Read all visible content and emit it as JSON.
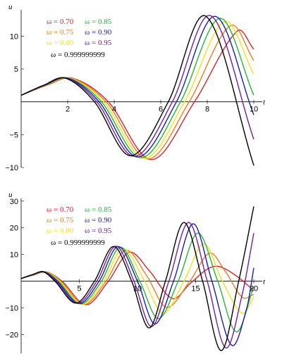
{
  "chart_data": [
    {
      "type": "line",
      "xlabel": "t",
      "ylabel": "u",
      "xlim": [
        0,
        10
      ],
      "ylim": [
        -10,
        14
      ],
      "xticks": [
        2,
        4,
        6,
        8,
        10
      ],
      "xtick_labels": [
        "2",
        "4",
        "6",
        "8",
        "10"
      ],
      "yticks": [
        -10,
        -5,
        5,
        10
      ],
      "ytick_labels": [
        "−10",
        "−5",
        "5",
        "10"
      ],
      "legend_position": "top-left",
      "series": [
        {
          "name": "ω = 0.70",
          "color": "#d8242c",
          "peak_t": 2.2,
          "valley_t": 5.6,
          "valley_u": -8.8,
          "peak2_t": 9.3,
          "peak2_u": 10.8,
          "end_u": 8.0
        },
        {
          "name": "ω = 0.75",
          "color": "#ef7d1d",
          "peak_t": 2.15,
          "valley_t": 5.45,
          "valley_u": -8.7,
          "peak2_t": 9.0,
          "peak2_u": 11.6,
          "end_u": 6.3
        },
        {
          "name": "ω = 0.80",
          "color": "#f4e21c",
          "peak_t": 2.1,
          "valley_t": 5.3,
          "valley_u": -8.6,
          "peak2_t": 8.75,
          "peak2_u": 12.2,
          "end_u": 4.2
        },
        {
          "name": "ω = 0.85",
          "color": "#22b83a",
          "peak_t": 2.05,
          "valley_t": 5.15,
          "valley_u": -8.5,
          "peak2_t": 8.55,
          "peak2_u": 12.7,
          "end_u": 1.0
        },
        {
          "name": "ω = 0.90",
          "color": "#1c1cb4",
          "peak_t": 2.0,
          "valley_t": 5.0,
          "valley_u": -8.4,
          "peak2_t": 8.35,
          "peak2_u": 13.0,
          "end_u": -2.0
        },
        {
          "name": "ω = 0.95",
          "color": "#7a1c9c",
          "peak_t": 1.95,
          "valley_t": 4.85,
          "valley_u": -8.3,
          "peak2_t": 8.15,
          "peak2_u": 13.1,
          "end_u": -5.7
        },
        {
          "name": "ω = 0.999999999",
          "color": "#000000",
          "peak_t": 1.9,
          "valley_t": 4.7,
          "valley_u": -8.2,
          "peak2_t": 7.95,
          "peak2_u": 13.0,
          "end_u": -9.7
        }
      ]
    },
    {
      "type": "line",
      "xlabel": "t",
      "ylabel": "u",
      "xlim": [
        0,
        20
      ],
      "ylim": [
        -27,
        31
      ],
      "xticks": [
        5,
        10,
        15,
        20
      ],
      "xtick_labels": [
        "5",
        "10",
        "15",
        "20"
      ],
      "yticks": [
        -20,
        -10,
        10,
        20,
        30
      ],
      "ytick_labels": [
        "−20",
        "−10",
        "10",
        "20",
        "30"
      ],
      "legend_position": "top-left",
      "series": [
        {
          "name": "ω = 0.70",
          "color": "#d8242c",
          "points": [
            [
              0,
              1
            ],
            [
              1,
              2.2
            ],
            [
              2.2,
              3.4
            ],
            [
              3.5,
              0
            ],
            [
              5.6,
              -8.8
            ],
            [
              7.5,
              0
            ],
            [
              9.3,
              10.8
            ],
            [
              11,
              4
            ],
            [
              13,
              -6.5
            ],
            [
              14.5,
              -1
            ],
            [
              16,
              4.5
            ],
            [
              17,
              5.5
            ],
            [
              18.5,
              2
            ],
            [
              20,
              -3.5
            ]
          ]
        },
        {
          "name": "ω = 0.75",
          "color": "#ef7d1d",
          "points": [
            [
              0,
              1
            ],
            [
              1,
              2.3
            ],
            [
              2.2,
              3.5
            ],
            [
              3.4,
              0
            ],
            [
              5.4,
              -8.7
            ],
            [
              7.3,
              0
            ],
            [
              9.0,
              11.6
            ],
            [
              10.8,
              2
            ],
            [
              12.5,
              -9.8
            ],
            [
              14.5,
              0
            ],
            [
              16.2,
              10.5
            ],
            [
              17.5,
              4
            ],
            [
              19,
              -6
            ],
            [
              20,
              -5
            ]
          ]
        },
        {
          "name": "ω = 0.80",
          "color": "#f4e21c",
          "points": [
            [
              0,
              1
            ],
            [
              1,
              2.3
            ],
            [
              2.1,
              3.5
            ],
            [
              3.3,
              0
            ],
            [
              5.3,
              -8.6
            ],
            [
              7.1,
              0
            ],
            [
              8.75,
              12.2
            ],
            [
              10.5,
              1
            ],
            [
              12.2,
              -12
            ],
            [
              14.0,
              0
            ],
            [
              15.7,
              14
            ],
            [
              17.3,
              0
            ],
            [
              19.0,
              -12
            ],
            [
              20,
              -6
            ]
          ]
        },
        {
          "name": "ω = 0.85",
          "color": "#22b83a",
          "points": [
            [
              0,
              1
            ],
            [
              1,
              2.4
            ],
            [
              2.05,
              3.5
            ],
            [
              3.2,
              0
            ],
            [
              5.15,
              -8.5
            ],
            [
              6.9,
              0
            ],
            [
              8.55,
              12.7
            ],
            [
              10.2,
              0
            ],
            [
              11.8,
              -14
            ],
            [
              13.5,
              0
            ],
            [
              15.2,
              18
            ],
            [
              16.9,
              0
            ],
            [
              18.5,
              -19
            ],
            [
              20,
              -2
            ]
          ]
        },
        {
          "name": "ω = 0.90",
          "color": "#1c1cb4",
          "points": [
            [
              0,
              1
            ],
            [
              1,
              2.4
            ],
            [
              2.0,
              3.5
            ],
            [
              3.1,
              0
            ],
            [
              5.0,
              -8.4
            ],
            [
              6.7,
              0
            ],
            [
              8.35,
              13.0
            ],
            [
              10.0,
              0
            ],
            [
              11.5,
              -16
            ],
            [
              13.1,
              0
            ],
            [
              14.8,
              21.5
            ],
            [
              16.4,
              0
            ],
            [
              18.1,
              -24
            ],
            [
              19.4,
              -10
            ],
            [
              20,
              5
            ]
          ]
        },
        {
          "name": "ω = 0.95",
          "color": "#7a1c9c",
          "points": [
            [
              0,
              1
            ],
            [
              1,
              2.5
            ],
            [
              1.95,
              3.5
            ],
            [
              3.0,
              0
            ],
            [
              4.85,
              -8.3
            ],
            [
              6.5,
              0
            ],
            [
              8.15,
              13.1
            ],
            [
              9.7,
              0
            ],
            [
              11.2,
              -17
            ],
            [
              12.7,
              0
            ],
            [
              14.4,
              22
            ],
            [
              16.0,
              0
            ],
            [
              17.6,
              -25
            ],
            [
              19.0,
              -5
            ],
            [
              20,
              18
            ]
          ]
        },
        {
          "name": "ω = 0.999999999",
          "color": "#000000",
          "points": [
            [
              0,
              1
            ],
            [
              1,
              2.5
            ],
            [
              1.9,
              3.5
            ],
            [
              2.9,
              0
            ],
            [
              4.7,
              -8.2
            ],
            [
              6.3,
              0
            ],
            [
              7.95,
              13.0
            ],
            [
              9.5,
              0
            ],
            [
              11.0,
              -17.5
            ],
            [
              12.4,
              0
            ],
            [
              14.0,
              22
            ],
            [
              15.6,
              0
            ],
            [
              17.2,
              -26
            ],
            [
              18.7,
              0
            ],
            [
              20,
              28
            ]
          ]
        }
      ]
    }
  ]
}
